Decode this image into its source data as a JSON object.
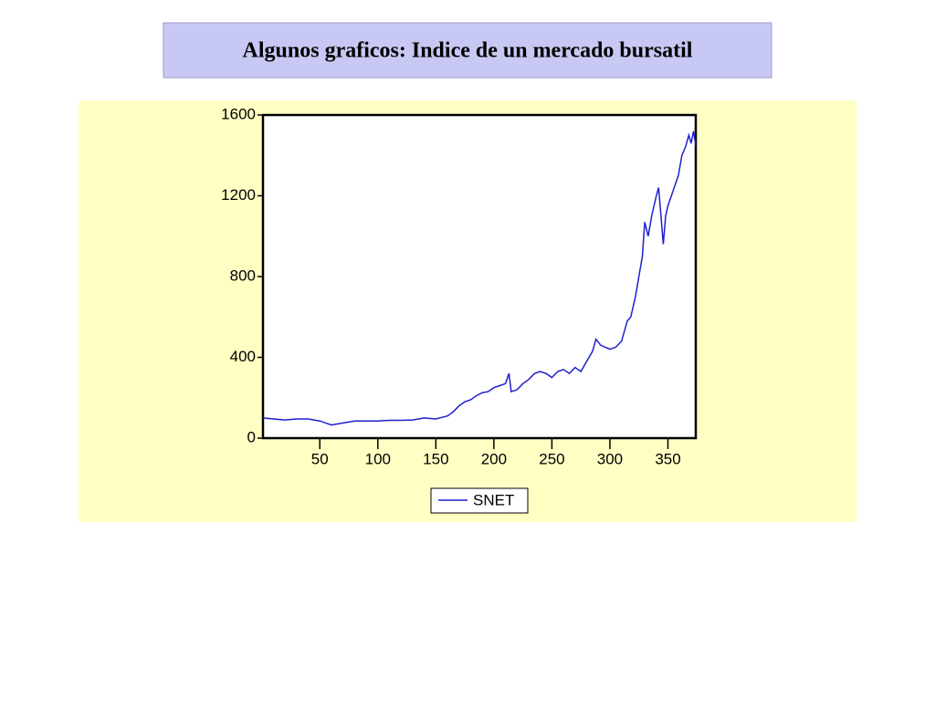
{
  "chart_data": {
    "type": "line",
    "title": "Algunos graficos: Indice de un mercado bursatil",
    "x": [
      1,
      10,
      20,
      30,
      40,
      50,
      55,
      60,
      65,
      70,
      80,
      90,
      100,
      110,
      120,
      130,
      140,
      150,
      160,
      165,
      170,
      175,
      180,
      185,
      190,
      195,
      200,
      205,
      210,
      213,
      215,
      220,
      225,
      230,
      235,
      240,
      245,
      250,
      255,
      260,
      265,
      270,
      275,
      280,
      285,
      288,
      292,
      296,
      300,
      305,
      310,
      315,
      318,
      322,
      325,
      328,
      330,
      333,
      336,
      340,
      342,
      344,
      346,
      348,
      350,
      353,
      356,
      359,
      362,
      365,
      368,
      370,
      372,
      374
    ],
    "series": [
      {
        "name": "SNET",
        "color": "#1f1fd0",
        "values": [
          100,
          95,
          90,
          95,
          95,
          85,
          75,
          65,
          70,
          75,
          85,
          85,
          85,
          88,
          88,
          90,
          100,
          95,
          110,
          130,
          160,
          180,
          190,
          210,
          225,
          230,
          250,
          260,
          270,
          320,
          230,
          240,
          270,
          290,
          320,
          330,
          320,
          300,
          330,
          340,
          320,
          350,
          330,
          380,
          430,
          490,
          460,
          450,
          440,
          450,
          480,
          580,
          600,
          700,
          800,
          900,
          1070,
          1000,
          1100,
          1200,
          1240,
          1100,
          960,
          1100,
          1150,
          1200,
          1250,
          1300,
          1400,
          1440,
          1500,
          1460,
          1520,
          1450
        ]
      }
    ],
    "xlim": [
      1,
      374
    ],
    "ylim": [
      0,
      1600
    ],
    "xticks": [
      50,
      100,
      150,
      200,
      250,
      300,
      350
    ],
    "yticks": [
      0,
      400,
      800,
      1200,
      1600
    ],
    "grid": false
  }
}
